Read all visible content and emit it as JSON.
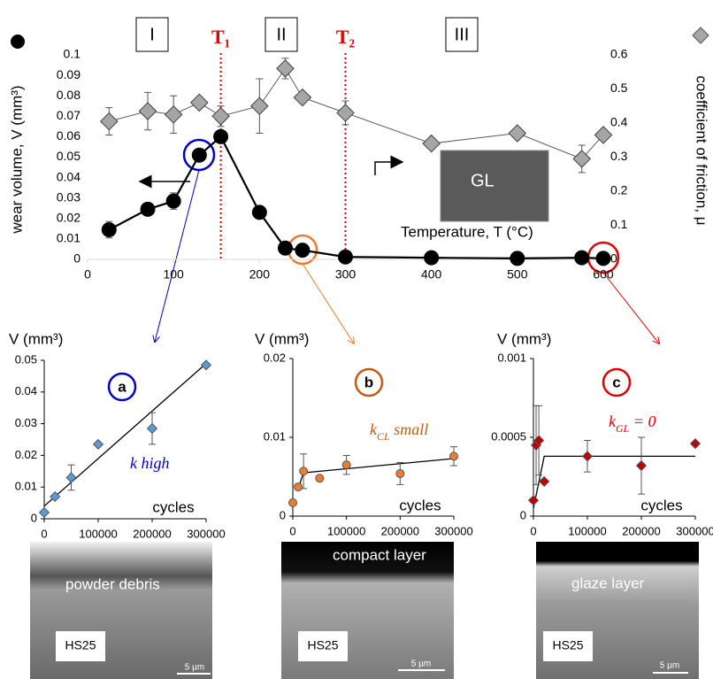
{
  "chart_data": [
    {
      "type": "line",
      "x_label": "Temperature, T (°C)",
      "y_label": "wear volume, V (mm³)",
      "y2_label": "coefficient of friction, μ",
      "regions": [
        "I",
        "II",
        "III"
      ],
      "transitions": [
        {
          "label": "T₁",
          "x": 155
        },
        {
          "label": "T₂",
          "x": 300
        }
      ],
      "inset_label": "GL",
      "xlim": [
        0,
        600
      ],
      "xticks": [
        0,
        100,
        200,
        300,
        400,
        500,
        600
      ],
      "ylim": [
        0,
        0.1
      ],
      "yticks": [
        0,
        0.01,
        0.02,
        0.03,
        0.04,
        0.05,
        0.06,
        0.07,
        0.08,
        0.09,
        0.1
      ],
      "y2lim": [
        0,
        0.6
      ],
      "y2ticks": [
        0,
        0.1,
        0.2,
        0.3,
        0.4,
        0.5,
        0.6
      ],
      "x": [
        25,
        70,
        100,
        130,
        155,
        200,
        230,
        250,
        300,
        400,
        500,
        575,
        600
      ],
      "series": [
        {
          "color": "#000000",
          "marker": "circle",
          "values": [
            0.0145,
            0.0245,
            0.0285,
            0.051,
            0.06,
            0.023,
            0.0055,
            0.0045,
            0.0012,
            0.0008,
            0.0005,
            0.0008,
            0.0005
          ],
          "errors": [
            0.004,
            0.002,
            0.004,
            0.003,
            0.003,
            null,
            null,
            null,
            null,
            null,
            null,
            0.003,
            null
          ]
        },
        {
          "axis": "y2",
          "color": "#a6a6a6",
          "marker": "diamond",
          "values": [
            0.405,
            0.435,
            0.425,
            0.46,
            0.42,
            0.45,
            0.56,
            0.475,
            0.43,
            0.34,
            0.37,
            0.295,
            0.365
          ],
          "errors": [
            0.04,
            0.055,
            0.055,
            null,
            0.03,
            0.08,
            0.03,
            null,
            0.035,
            null,
            null,
            0.04,
            null
          ]
        }
      ]
    },
    {
      "type": "scatter",
      "label": "a",
      "y_label": "V (mm³)",
      "x_label": "cycles",
      "rate_label": [
        "k",
        "",
        " high"
      ],
      "color": "#5b9bd5",
      "accent": "#0000cc",
      "xlim": [
        0,
        300000
      ],
      "xticks": [
        0,
        100000,
        200000,
        300000
      ],
      "ylim": [
        0,
        0.05
      ],
      "yticks": [
        0,
        0.01,
        0.02,
        0.03,
        0.04,
        0.05
      ],
      "marker": "diamond",
      "x": [
        0,
        20000,
        50000,
        100000,
        200000,
        300000
      ],
      "values": [
        0.002,
        0.007,
        0.013,
        0.0235,
        0.0285,
        0.0485
      ],
      "errors": [
        null,
        null,
        0.004,
        null,
        0.005,
        null
      ],
      "fit": {
        "x": [
          0,
          300000
        ],
        "values": [
          0.004,
          0.049
        ]
      }
    },
    {
      "type": "scatter",
      "label": "b",
      "y_label": "V (mm³)",
      "x_label": "cycles",
      "rate_label": [
        "k",
        "CL",
        " small"
      ],
      "color": "#ed7d31",
      "accent": "#c55a11",
      "xlim": [
        0,
        300000
      ],
      "xticks": [
        0,
        100000,
        200000,
        300000
      ],
      "ylim": [
        0,
        0.02
      ],
      "yticks": [
        0,
        0.01,
        0.02
      ],
      "marker": "circle",
      "x": [
        0,
        10000,
        20000,
        50000,
        100000,
        200000,
        300000
      ],
      "values": [
        0.0017,
        0.0037,
        0.0057,
        0.0048,
        0.0065,
        0.0054,
        0.0076
      ],
      "errors": [
        null,
        null,
        0.0022,
        null,
        0.0012,
        0.0014,
        0.0012
      ],
      "fit": {
        "x": [
          10000,
          20000,
          300000
        ],
        "values": [
          0.0035,
          0.0055,
          0.0073
        ]
      }
    },
    {
      "type": "scatter",
      "label": "c",
      "y_label": "V (mm³)",
      "x_label": "cycles",
      "rate_label": [
        "k",
        "GL",
        " = 0"
      ],
      "color": "#c00000",
      "accent": "#e00000",
      "xlim": [
        0,
        300000
      ],
      "xticks": [
        0,
        100000,
        200000,
        300000
      ],
      "ylim": [
        0,
        0.001
      ],
      "yticks": [
        0,
        0.0005,
        0.001
      ],
      "marker": "diamond",
      "x": [
        0,
        5000,
        10000,
        20000,
        100000,
        200000,
        300000
      ],
      "values": [
        0.0001,
        0.00045,
        0.00048,
        0.00022,
        0.00038,
        0.00032,
        0.00046
      ],
      "errors": [
        null,
        0.00025,
        0.00022,
        null,
        0.0001,
        0.00018,
        null
      ],
      "fit": {
        "x": [
          0,
          20000,
          300000
        ],
        "values": [
          5e-05,
          0.00038,
          0.00038
        ]
      }
    }
  ],
  "images": [
    {
      "caption": "powder debris",
      "sample": "HS25",
      "scale": "5 µm"
    },
    {
      "caption": "compact layer",
      "sample": "HS25",
      "scale": "5 µm"
    },
    {
      "caption": "glaze layer",
      "sample": "HS25",
      "scale": "5 µm"
    }
  ]
}
